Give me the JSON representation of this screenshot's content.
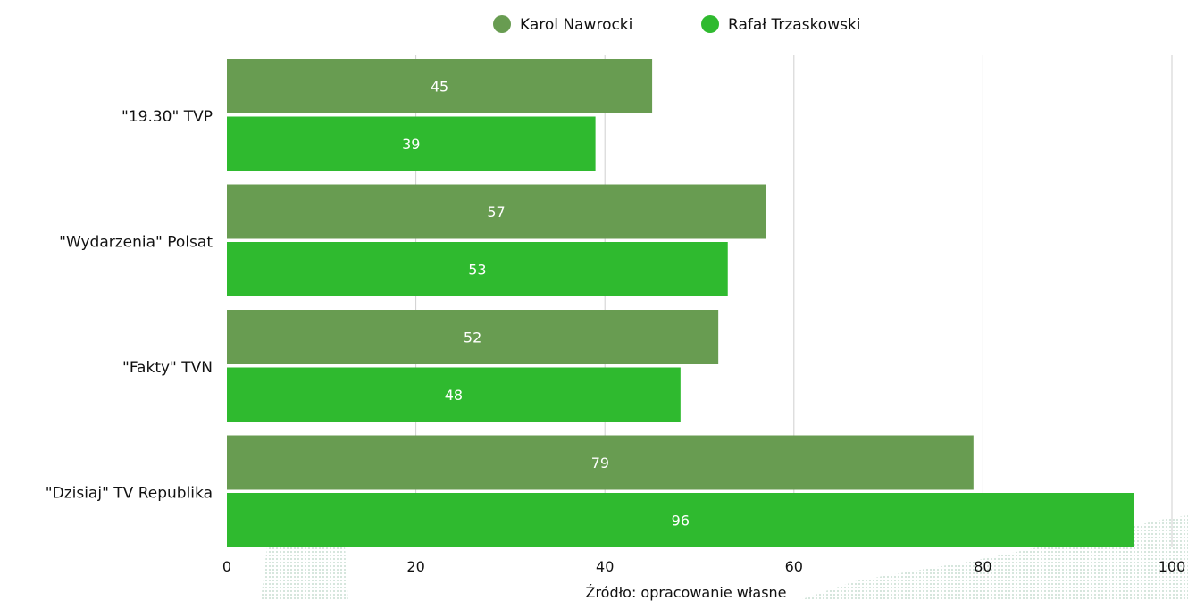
{
  "chart_data": {
    "type": "bar",
    "orientation": "horizontal",
    "categories": [
      "\"19.30\" TVP",
      "\"Wydarzenia\" Polsat",
      "\"Fakty\" TVN",
      "\"Dzisiaj\" TV Republika"
    ],
    "series": [
      {
        "name": "Karol Nawrocki",
        "color": "#689c51",
        "values": [
          45,
          57,
          52,
          79
        ]
      },
      {
        "name": "Rafał Trzaskowski",
        "color": "#2fba2f",
        "values": [
          39,
          53,
          48,
          96
        ]
      }
    ],
    "xlim": [
      0,
      100
    ],
    "xticks": [
      0,
      20,
      40,
      60,
      80,
      100
    ],
    "grid": true,
    "legend_position": "top-center",
    "data_labels": true,
    "source": "Źródło: opracowanie własne"
  }
}
